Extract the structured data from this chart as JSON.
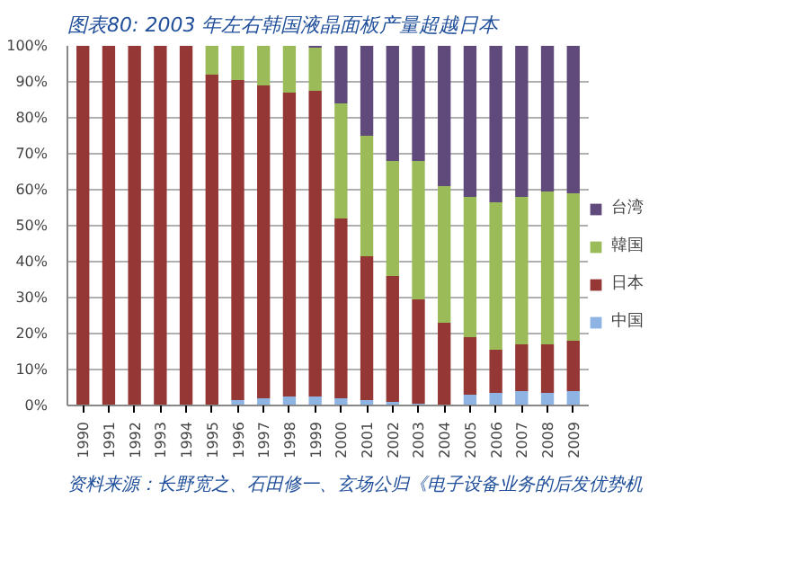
{
  "chart_data": {
    "type": "bar",
    "stacked": true,
    "title": "图表80:  2003 年左右韩国液晶面板产量超越日本",
    "annotations": [
      "资料来源：长野宽之、石田修一、玄场公归《电子设备业务的后发优势机"
    ],
    "categories": [
      "1990",
      "1991",
      "1992",
      "1993",
      "1994",
      "1995",
      "1996",
      "1997",
      "1998",
      "1999",
      "2000",
      "2001",
      "2002",
      "2003",
      "2004",
      "2005",
      "2006",
      "2007",
      "2008",
      "2009"
    ],
    "series": [
      {
        "name": "中国",
        "color": "#8db4e2",
        "values": [
          0,
          0,
          0,
          0,
          0,
          0,
          1.5,
          2,
          2.5,
          2.5,
          2,
          1.5,
          1,
          0.5,
          0,
          3,
          3.5,
          4,
          3.5,
          4
        ]
      },
      {
        "name": "日本",
        "color": "#953735",
        "values": [
          100,
          100,
          100,
          100,
          100,
          92,
          89,
          87,
          84.5,
          85,
          50,
          40,
          35,
          29,
          23,
          16,
          12,
          13,
          13.5,
          14
        ]
      },
      {
        "name": "韓国",
        "color": "#9bbb59",
        "values": [
          0,
          0,
          0,
          0,
          0,
          8,
          9.5,
          11,
          13,
          12,
          32,
          33.5,
          32,
          38.5,
          38,
          39,
          41,
          41,
          42.5,
          41
        ]
      },
      {
        "name": "台湾",
        "color": "#604a7b",
        "values": [
          0,
          0,
          0,
          0,
          0,
          0,
          0,
          0,
          0,
          0.5,
          16,
          25,
          32,
          32,
          39,
          42,
          43.5,
          42,
          40.5,
          41
        ]
      }
    ],
    "ylim": [
      0,
      100
    ],
    "yticks": [
      {
        "value": 0,
        "label": "0%"
      },
      {
        "value": 10,
        "label": "10%"
      },
      {
        "value": 20,
        "label": "20%"
      },
      {
        "value": 30,
        "label": "30%"
      },
      {
        "value": 40,
        "label": "40%"
      },
      {
        "value": 50,
        "label": "50%"
      },
      {
        "value": 60,
        "label": "60%"
      },
      {
        "value": 70,
        "label": "70%"
      },
      {
        "value": 80,
        "label": "80%"
      },
      {
        "value": 90,
        "label": "90%"
      },
      {
        "value": 100,
        "label": "100%"
      }
    ],
    "grid": "y",
    "legend": "right"
  }
}
